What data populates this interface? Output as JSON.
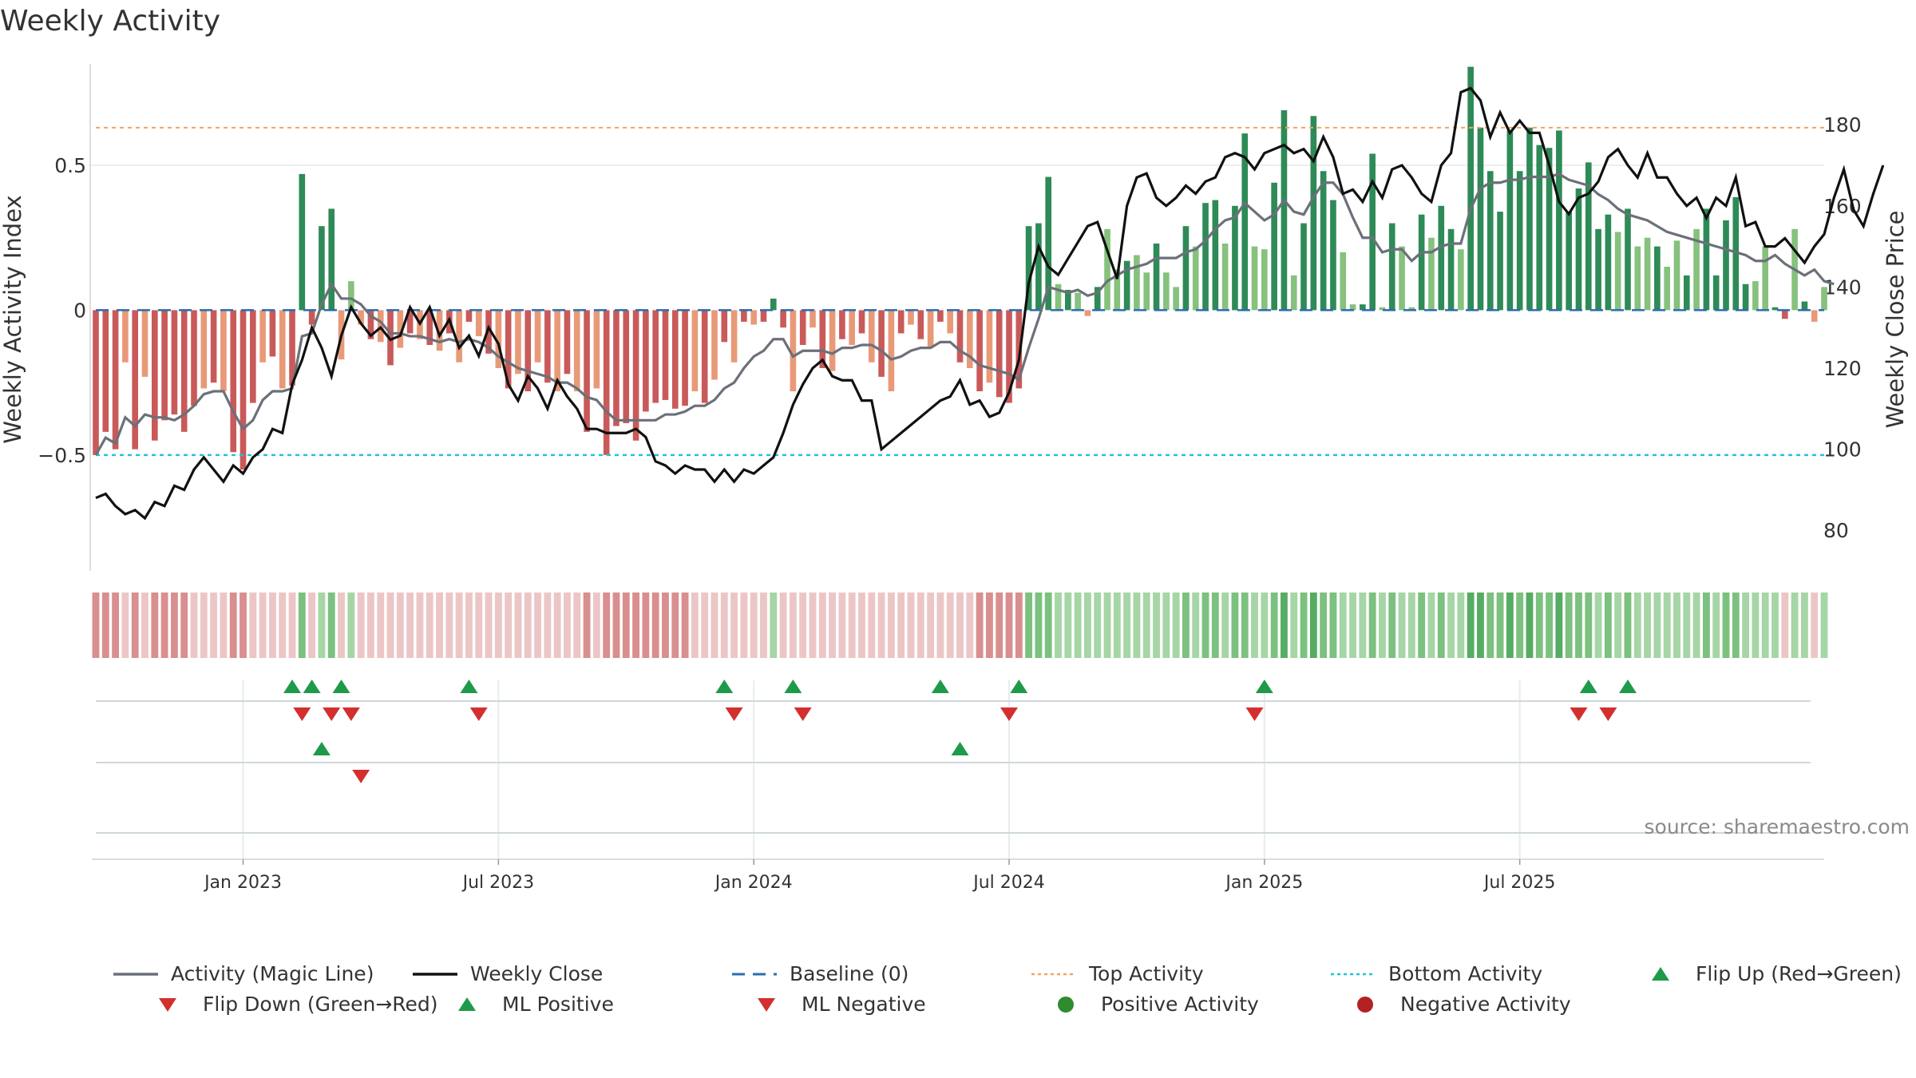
{
  "chart_data": {
    "type": "bar",
    "title": "Weekly Activity",
    "source": "source: sharemaestro.com",
    "xlabel": "",
    "ylabel_left": "Weekly Activity Index",
    "ylabel_right": "Weekly Close Price",
    "ylim_left": [
      -0.9,
      0.85
    ],
    "ylim_right": [
      70,
      195
    ],
    "left_ticks": [
      {
        "v": 0.5,
        "label": "0.5"
      },
      {
        "v": 0,
        "label": "0"
      },
      {
        "v": -0.5,
        "label": "−0.5"
      }
    ],
    "right_ticks": [
      {
        "v": 180,
        "label": "180"
      },
      {
        "v": 160,
        "label": "160"
      },
      {
        "v": 140,
        "label": "140"
      },
      {
        "v": 120,
        "label": "120"
      },
      {
        "v": 100,
        "label": "100"
      },
      {
        "v": 80,
        "label": "80"
      }
    ],
    "x_ticks": [
      {
        "i": 15,
        "label": "Jan 2023"
      },
      {
        "i": 41,
        "label": "Jul 2023"
      },
      {
        "i": 67,
        "label": "Jan 2024"
      },
      {
        "i": 93,
        "label": "Jul 2024"
      },
      {
        "i": 119,
        "label": "Jan 2025"
      },
      {
        "i": 145,
        "label": "Jul 2025"
      }
    ],
    "reference_lines": {
      "baseline": 0,
      "top_activity": 0.63,
      "bottom_activity": -0.5
    },
    "series": [
      {
        "name": "Weekly Activity Index",
        "kind": "bar",
        "values": [
          -0.5,
          -0.42,
          -0.48,
          -0.18,
          -0.48,
          -0.23,
          -0.45,
          -0.38,
          -0.36,
          -0.42,
          -0.33,
          -0.27,
          -0.25,
          -0.28,
          -0.49,
          -0.55,
          -0.32,
          -0.18,
          -0.16,
          -0.27,
          -0.26,
          0.47,
          -0.05,
          0.29,
          0.35,
          -0.17,
          0.1,
          -0.05,
          -0.1,
          -0.11,
          -0.19,
          -0.13,
          -0.08,
          -0.1,
          -0.12,
          -0.14,
          -0.08,
          -0.18,
          -0.04,
          -0.09,
          -0.15,
          -0.2,
          -0.27,
          -0.22,
          -0.28,
          -0.18,
          -0.25,
          -0.28,
          -0.22,
          -0.28,
          -0.42,
          -0.27,
          -0.5,
          -0.4,
          -0.39,
          -0.45,
          -0.35,
          -0.32,
          -0.31,
          -0.34,
          -0.33,
          -0.28,
          -0.32,
          -0.24,
          -0.11,
          -0.18,
          -0.04,
          -0.05,
          -0.04,
          0.04,
          -0.06,
          -0.28,
          -0.12,
          -0.06,
          -0.2,
          -0.21,
          -0.1,
          -0.12,
          -0.08,
          -0.18,
          -0.23,
          -0.28,
          -0.08,
          -0.05,
          -0.1,
          -0.13,
          -0.04,
          -0.08,
          -0.18,
          -0.2,
          -0.28,
          -0.25,
          -0.3,
          -0.32,
          -0.27,
          0.29,
          0.3,
          0.46,
          0.09,
          0.07,
          0.06,
          -0.02,
          0.08,
          0.28,
          0.14,
          0.17,
          0.19,
          0.13,
          0.23,
          0.13,
          0.08,
          0.29,
          0.22,
          0.37,
          0.38,
          0.23,
          0.36,
          0.61,
          0.22,
          0.21,
          0.44,
          0.69,
          0.12,
          0.3,
          0.67,
          0.48,
          0.38,
          0.2,
          0.02,
          0.02,
          0.54,
          0.01,
          0.3,
          0.22,
          0.01,
          0.33,
          0.25,
          0.36,
          0.28,
          0.21,
          0.84,
          0.63,
          0.48,
          0.34,
          0.62,
          0.48,
          0.63,
          0.57,
          0.56,
          0.62,
          0.34,
          0.42,
          0.51,
          0.28,
          0.33,
          0.27,
          0.35,
          0.22,
          0.25,
          0.22,
          0.15,
          0.24,
          0.12,
          0.28,
          0.35,
          0.12,
          0.31,
          0.39,
          0.09,
          0.1,
          0.22,
          0.01,
          -0.03,
          0.28,
          0.03,
          -0.04,
          0.08
        ]
      },
      {
        "name": "Weekly Close",
        "kind": "line",
        "axis": "right",
        "values": [
          88,
          89,
          86,
          84,
          85,
          83,
          87,
          86,
          91,
          90,
          95,
          98,
          95,
          92,
          96,
          94,
          98,
          100,
          105,
          104,
          116,
          122,
          130,
          125,
          118,
          128,
          135,
          131,
          128,
          130,
          127,
          128,
          135,
          131,
          135,
          128,
          132,
          125,
          128,
          123,
          130,
          126,
          116,
          112,
          118,
          115,
          110,
          117,
          113,
          110,
          105,
          105,
          104,
          104,
          104,
          105,
          103,
          97,
          96,
          94,
          96,
          95,
          95,
          92,
          95,
          92,
          95,
          94,
          96,
          98,
          104,
          111,
          116,
          120,
          122,
          118,
          117,
          117,
          112,
          112,
          100,
          102,
          104,
          106,
          108,
          110,
          112,
          113,
          117,
          111,
          112,
          108,
          109,
          114,
          122,
          141,
          150,
          145,
          143,
          147,
          151,
          155,
          156,
          149,
          142,
          160,
          167,
          168,
          162,
          160,
          162,
          165,
          163,
          166,
          167,
          172,
          173,
          172,
          169,
          173,
          174,
          175,
          173,
          174,
          171,
          177,
          172,
          163,
          164,
          161,
          166,
          162,
          169,
          170,
          167,
          163,
          161,
          170,
          173,
          188,
          189,
          186,
          177,
          183,
          178,
          181,
          178,
          178,
          170,
          161,
          158,
          162,
          163,
          166,
          172,
          174,
          170,
          167,
          173,
          167,
          167,
          163,
          160,
          162,
          157,
          162,
          160,
          167,
          155,
          156,
          150,
          150,
          152,
          149,
          146,
          150,
          153,
          162,
          169,
          159,
          155,
          163,
          170
        ]
      },
      {
        "name": "Activity (Magic Line)",
        "kind": "line",
        "values": [
          -0.5,
          -0.44,
          -0.46,
          -0.37,
          -0.4,
          -0.36,
          -0.37,
          -0.37,
          -0.38,
          -0.36,
          -0.33,
          -0.29,
          -0.28,
          -0.28,
          -0.35,
          -0.41,
          -0.38,
          -0.31,
          -0.28,
          -0.28,
          -0.27,
          -0.09,
          -0.08,
          0.02,
          0.09,
          0.04,
          0.04,
          0.02,
          -0.02,
          -0.04,
          -0.08,
          -0.08,
          -0.09,
          -0.09,
          -0.1,
          -0.11,
          -0.1,
          -0.11,
          -0.1,
          -0.11,
          -0.13,
          -0.16,
          -0.18,
          -0.2,
          -0.21,
          -0.22,
          -0.23,
          -0.25,
          -0.25,
          -0.27,
          -0.3,
          -0.31,
          -0.35,
          -0.38,
          -0.38,
          -0.38,
          -0.38,
          -0.38,
          -0.36,
          -0.36,
          -0.35,
          -0.33,
          -0.33,
          -0.31,
          -0.27,
          -0.25,
          -0.2,
          -0.16,
          -0.14,
          -0.1,
          -0.1,
          -0.16,
          -0.14,
          -0.14,
          -0.14,
          -0.15,
          -0.13,
          -0.13,
          -0.12,
          -0.12,
          -0.14,
          -0.17,
          -0.16,
          -0.14,
          -0.13,
          -0.13,
          -0.11,
          -0.11,
          -0.14,
          -0.16,
          -0.19,
          -0.2,
          -0.21,
          -0.22,
          -0.24,
          -0.13,
          -0.03,
          0.08,
          0.07,
          0.06,
          0.07,
          0.05,
          0.06,
          0.1,
          0.12,
          0.14,
          0.15,
          0.16,
          0.18,
          0.18,
          0.18,
          0.2,
          0.21,
          0.24,
          0.28,
          0.31,
          0.32,
          0.37,
          0.34,
          0.31,
          0.33,
          0.38,
          0.34,
          0.33,
          0.39,
          0.44,
          0.44,
          0.4,
          0.32,
          0.25,
          0.25,
          0.2,
          0.21,
          0.21,
          0.17,
          0.2,
          0.2,
          0.22,
          0.23,
          0.23,
          0.35,
          0.42,
          0.44,
          0.44,
          0.45,
          0.45,
          0.46,
          0.46,
          0.46,
          0.47,
          0.45,
          0.44,
          0.43,
          0.4,
          0.38,
          0.35,
          0.33,
          0.32,
          0.31,
          0.29,
          0.27,
          0.26,
          0.25,
          0.24,
          0.23,
          0.22,
          0.21,
          0.2,
          0.19,
          0.17,
          0.17,
          0.19,
          0.16,
          0.14,
          0.12,
          0.14,
          0.1,
          0.09
        ]
      }
    ],
    "activity_strip": [
      -2,
      -2,
      -2,
      -1,
      -2,
      -1,
      -2,
      -2,
      -2,
      -2,
      -1,
      -1,
      -1,
      -1,
      -2,
      -2,
      -1,
      -1,
      -1,
      -1,
      -1,
      2,
      -1,
      1,
      2,
      -1,
      1,
      -1,
      -1,
      -1,
      -1,
      -1,
      -1,
      -1,
      -1,
      -1,
      -1,
      -1,
      -1,
      -1,
      -1,
      -1,
      -1,
      -1,
      -1,
      -1,
      -1,
      -1,
      -1,
      -1,
      -2,
      -1,
      -2,
      -2,
      -2,
      -2,
      -2,
      -2,
      -2,
      -2,
      -2,
      -1,
      -1,
      -1,
      -1,
      -1,
      -1,
      -1,
      -1,
      1,
      -1,
      -1,
      -1,
      -1,
      -1,
      -1,
      -1,
      -1,
      -1,
      -1,
      -1,
      -1,
      -1,
      -1,
      -1,
      -1,
      -1,
      -1,
      -1,
      -1,
      -2,
      -2,
      -2,
      -2,
      -2,
      2,
      2,
      2,
      1,
      1,
      1,
      1,
      1,
      1,
      1,
      1,
      1,
      1,
      1,
      1,
      1,
      2,
      1,
      2,
      2,
      1,
      2,
      2,
      1,
      1,
      2,
      3,
      1,
      2,
      3,
      2,
      2,
      1,
      1,
      1,
      2,
      1,
      2,
      1,
      1,
      2,
      1,
      2,
      1,
      1,
      3,
      3,
      2,
      2,
      3,
      2,
      3,
      2,
      2,
      3,
      2,
      2,
      2,
      1,
      2,
      1,
      2,
      1,
      1,
      1,
      1,
      1,
      1,
      1,
      2,
      1,
      2,
      2,
      1,
      1,
      1,
      1,
      -1,
      1,
      1,
      -1,
      1
    ],
    "events": {
      "flip_up": [
        20,
        22,
        25,
        38,
        64,
        71,
        86,
        94,
        119,
        152,
        156
      ],
      "flip_down": [
        21,
        24,
        26,
        39,
        65,
        72,
        93,
        118,
        151,
        154
      ],
      "ml_positive": [
        23,
        88
      ],
      "ml_negative": [
        27
      ]
    },
    "legend": [
      {
        "label": "Activity (Magic Line)",
        "symbol": "line",
        "color": "#6b7079"
      },
      {
        "label": "Weekly Close",
        "symbol": "line",
        "color": "#111111"
      },
      {
        "label": "Baseline (0)",
        "symbol": "dash",
        "color": "#2a6db0"
      },
      {
        "label": "Top Activity",
        "symbol": "dot-orange",
        "color": "#f4a261"
      },
      {
        "label": "Bottom Activity",
        "symbol": "dot-cyan",
        "color": "#22c3d6"
      },
      {
        "label": "Flip Up (Red→Green)",
        "symbol": "tri-up",
        "color": "#1e9a4a"
      },
      {
        "label": "Flip Down (Green→Red)",
        "symbol": "tri-down",
        "color": "#d32f2f"
      },
      {
        "label": "ML Positive",
        "symbol": "tri-up",
        "color": "#1e9a4a"
      },
      {
        "label": "ML Negative",
        "symbol": "tri-down",
        "color": "#d32f2f"
      },
      {
        "label": "Positive Activity",
        "symbol": "circle",
        "color": "#2e8b2e"
      },
      {
        "label": "Negative Activity",
        "symbol": "circle",
        "color": "#b22222"
      }
    ],
    "colors": {
      "bar_pos_strong": "#2e8a57",
      "bar_pos_weak": "#86c17d",
      "bar_neg_strong": "#c95a5a",
      "bar_neg_weak": "#e89a78",
      "close_line": "#111111",
      "magic_line": "#6b7079"
    }
  }
}
